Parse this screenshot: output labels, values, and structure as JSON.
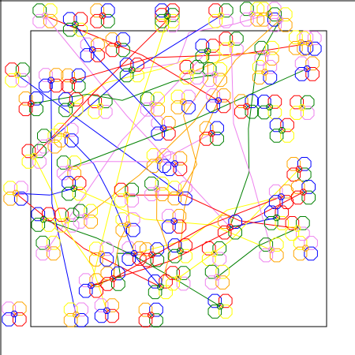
{
  "palette": {
    "colors": [
      "#0000ff",
      "#ff0000",
      "#008000",
      "#ffff00",
      "#ee82ee",
      "#ffa500"
    ],
    "background": "#ffffff",
    "frame": "#000000"
  },
  "shapes": {
    "motif": "octagon-rosette",
    "connector": "polyline"
  }
}
